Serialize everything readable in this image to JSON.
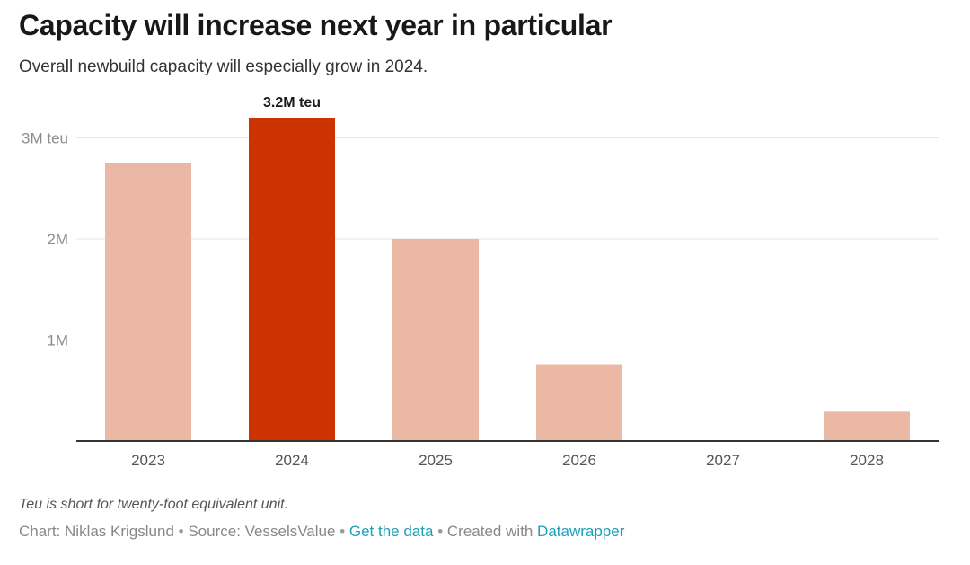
{
  "header": {
    "title": "Capacity will increase next year in particular",
    "subtitle": "Overall newbuild capacity will especially grow in 2024."
  },
  "chart_data": {
    "type": "bar",
    "categories": [
      "2023",
      "2024",
      "2025",
      "2026",
      "2027",
      "2028"
    ],
    "values": [
      2.75,
      3.2,
      2.0,
      0.76,
      0,
      0.29
    ],
    "value_unit": "M teu",
    "highlight_index": 1,
    "data_labels": [
      {
        "index": 1,
        "text": "3.2M teu"
      }
    ],
    "y_ticks": [
      {
        "value": 1,
        "label": "1M"
      },
      {
        "value": 2,
        "label": "2M"
      },
      {
        "value": 3,
        "label": "3M teu"
      }
    ],
    "ylim": [
      0,
      3.2
    ],
    "grid": true,
    "colors": {
      "bar": "#ecb8a6",
      "highlight": "#cc3300",
      "grid": "#e6e6e6",
      "axis": "#333333",
      "tick_label": "#8c8c8c",
      "category_label": "#555555",
      "data_label": "#1a1a1a"
    }
  },
  "notes": "Teu is short for twenty-foot equivalent unit.",
  "footer": {
    "chart_credit": "Chart: Niklas Krigslund",
    "source": "Source: VesselsValue",
    "separator": "•",
    "data_link": "Get the data",
    "created_with": "Created with",
    "tool_link": "Datawrapper"
  }
}
